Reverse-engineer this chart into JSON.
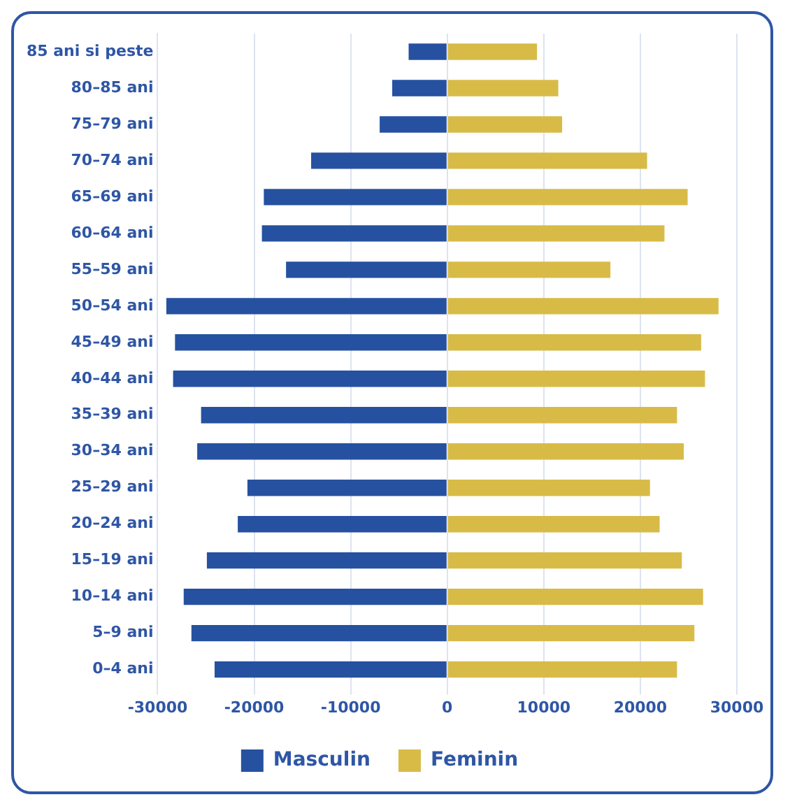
{
  "chart_data": {
    "type": "bar",
    "orientation": "horizontal",
    "stacked": true,
    "categories": [
      "85 ani si peste",
      "80–85 ani",
      "75–79 ani",
      "70–74 ani",
      "65–69 ani",
      "60–64 ani",
      "55–59 ani",
      "50–54 ani",
      "45–49 ani",
      "40–44 ani",
      "35–39 ani",
      "30–34 ani",
      "25–29 ani",
      "20–24 ani",
      "15–19 ani",
      "10–14 ani",
      "5–9 ani",
      "0–4 ani"
    ],
    "series": [
      {
        "name": "Masculin",
        "color": "#2651a0",
        "values": [
          -4000,
          -5700,
          -7000,
          -14100,
          -19000,
          -19200,
          -16700,
          -29100,
          -28200,
          -28400,
          -25500,
          -25900,
          -20700,
          -21700,
          -24900,
          -27300,
          -26500,
          -24100
        ]
      },
      {
        "name": "Feminin",
        "color": "#d8bb47",
        "values": [
          9300,
          11500,
          11900,
          20700,
          24900,
          22500,
          16900,
          28100,
          26300,
          26700,
          23800,
          24500,
          21000,
          22000,
          24300,
          26500,
          25600,
          23800
        ]
      }
    ],
    "xlim": [
      -30000,
      30000
    ],
    "xticks": [
      -30000,
      -20000,
      -10000,
      0,
      10000,
      20000,
      30000
    ],
    "grid": "x",
    "legend": "bottom"
  }
}
